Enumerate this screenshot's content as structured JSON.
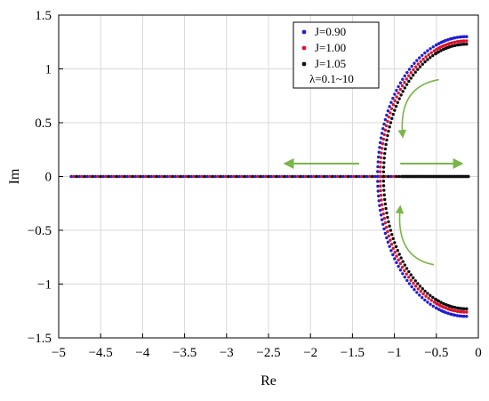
{
  "chart_data": {
    "type": "scatter",
    "xlabel": "Re",
    "ylabel": "Im",
    "xlim": [
      -5,
      0
    ],
    "ylim": [
      -1.5,
      1.5
    ],
    "xticks": [
      -5,
      -4.5,
      -4,
      -3.5,
      -3,
      -2.5,
      -2,
      -1.5,
      -1,
      -0.5,
      0
    ],
    "yticks": [
      1.5,
      1,
      0.5,
      0,
      -0.5,
      -1,
      -1.5
    ],
    "xtick_labels": [
      "−5",
      "−4.5",
      "−4",
      "−3.5",
      "−3",
      "−2.5",
      "−2",
      "−1.5",
      "−1",
      "−0.5",
      "0"
    ],
    "ytick_labels": [
      "1.5",
      "1",
      "0.5",
      "0",
      "−0.5",
      "−1",
      "−1.5"
    ],
    "grid": true,
    "legend_position": "top-right",
    "legend_note": "λ=0.1~10",
    "series": [
      {
        "name": "J=0.90",
        "color": "#1f1fd6",
        "radius": 1.3,
        "real_axis_point": -1.2
      },
      {
        "name": "J=1.00",
        "color": "#e0102a",
        "radius": 1.26,
        "real_axis_point": -1.17
      },
      {
        "name": "J=1.05",
        "color": "#111111",
        "radius": 1.23,
        "real_axis_point": -1.13
      }
    ],
    "real_axis_range": [
      -4.85,
      -0.12
    ],
    "arrow_color": "#7ab648",
    "annotations": [
      {
        "type": "arrow",
        "direction": "left",
        "from": [
          -1.42,
          0.12
        ],
        "to": [
          -2.3,
          0.12
        ]
      },
      {
        "type": "arrow",
        "direction": "right",
        "from": [
          -0.93,
          0.12
        ],
        "to": [
          -0.2,
          0.12
        ]
      },
      {
        "type": "arc-arrow",
        "direction": "down",
        "from": [
          -0.47,
          0.9
        ],
        "to": [
          -0.9,
          0.37
        ]
      },
      {
        "type": "arc-arrow",
        "direction": "up",
        "from": [
          -0.53,
          -0.82
        ],
        "to": [
          -0.93,
          -0.28
        ]
      }
    ]
  }
}
